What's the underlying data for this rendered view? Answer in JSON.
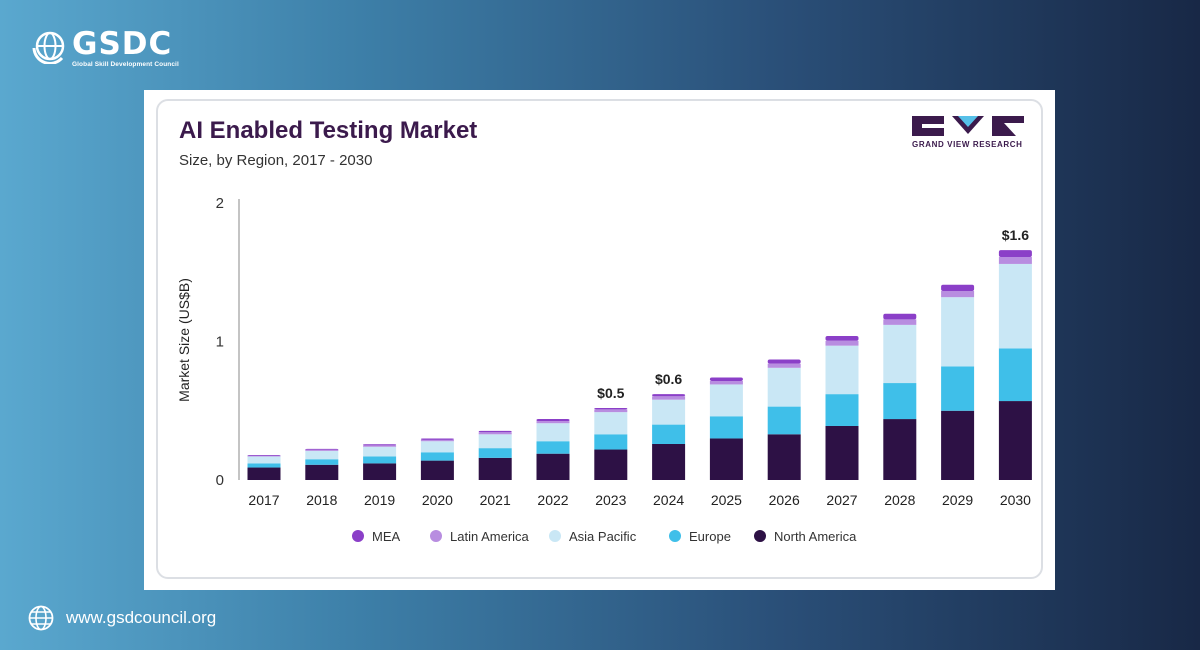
{
  "brand": {
    "name": "GSDC",
    "tagline": "Global Skill Development Council",
    "website": "www.gsdcouncil.org"
  },
  "source_logo": {
    "text": "GRAND VIEW RESEARCH",
    "color": "#3b1a4c"
  },
  "chart_data": {
    "type": "bar",
    "stacked": true,
    "title": "AI Enabled Testing Market",
    "subtitle": "Size, by Region, 2017 - 2030",
    "xlabel": "",
    "ylabel": "Market Size (US$B)",
    "ylim": [
      0,
      2
    ],
    "yticks": [
      0,
      1,
      2
    ],
    "grid": false,
    "legend_position": "bottom",
    "categories": [
      "2017",
      "2018",
      "2019",
      "2020",
      "2021",
      "2022",
      "2023",
      "2024",
      "2025",
      "2026",
      "2027",
      "2028",
      "2029",
      "2030"
    ],
    "series": [
      {
        "name": "North America",
        "color": "#2d1145",
        "values": [
          0.09,
          0.11,
          0.12,
          0.14,
          0.16,
          0.19,
          0.22,
          0.26,
          0.3,
          0.33,
          0.39,
          0.44,
          0.5,
          0.57
        ]
      },
      {
        "name": "Europe",
        "color": "#3fbfe9",
        "values": [
          0.03,
          0.04,
          0.05,
          0.06,
          0.07,
          0.09,
          0.11,
          0.14,
          0.16,
          0.2,
          0.23,
          0.26,
          0.32,
          0.38
        ]
      },
      {
        "name": "Asia Pacific",
        "color": "#c9e7f5",
        "values": [
          0.05,
          0.06,
          0.07,
          0.08,
          0.1,
          0.13,
          0.16,
          0.18,
          0.23,
          0.28,
          0.35,
          0.42,
          0.5,
          0.61
        ]
      },
      {
        "name": "Latin America",
        "color": "#b88de0",
        "values": [
          0.005,
          0.008,
          0.01,
          0.01,
          0.015,
          0.015,
          0.02,
          0.025,
          0.025,
          0.03,
          0.035,
          0.04,
          0.045,
          0.05
        ]
      },
      {
        "name": "MEA",
        "color": "#8b3fc8",
        "values": [
          0.005,
          0.007,
          0.008,
          0.01,
          0.01,
          0.015,
          0.01,
          0.015,
          0.025,
          0.03,
          0.035,
          0.04,
          0.045,
          0.05
        ]
      }
    ],
    "legend_order": [
      "MEA",
      "Latin America",
      "Asia Pacific",
      "Europe",
      "North America"
    ],
    "annotations": [
      {
        "category": "2023",
        "text": "$0.5"
      },
      {
        "category": "2024",
        "text": "$0.6"
      },
      {
        "category": "2030",
        "text": "$1.6"
      }
    ]
  }
}
